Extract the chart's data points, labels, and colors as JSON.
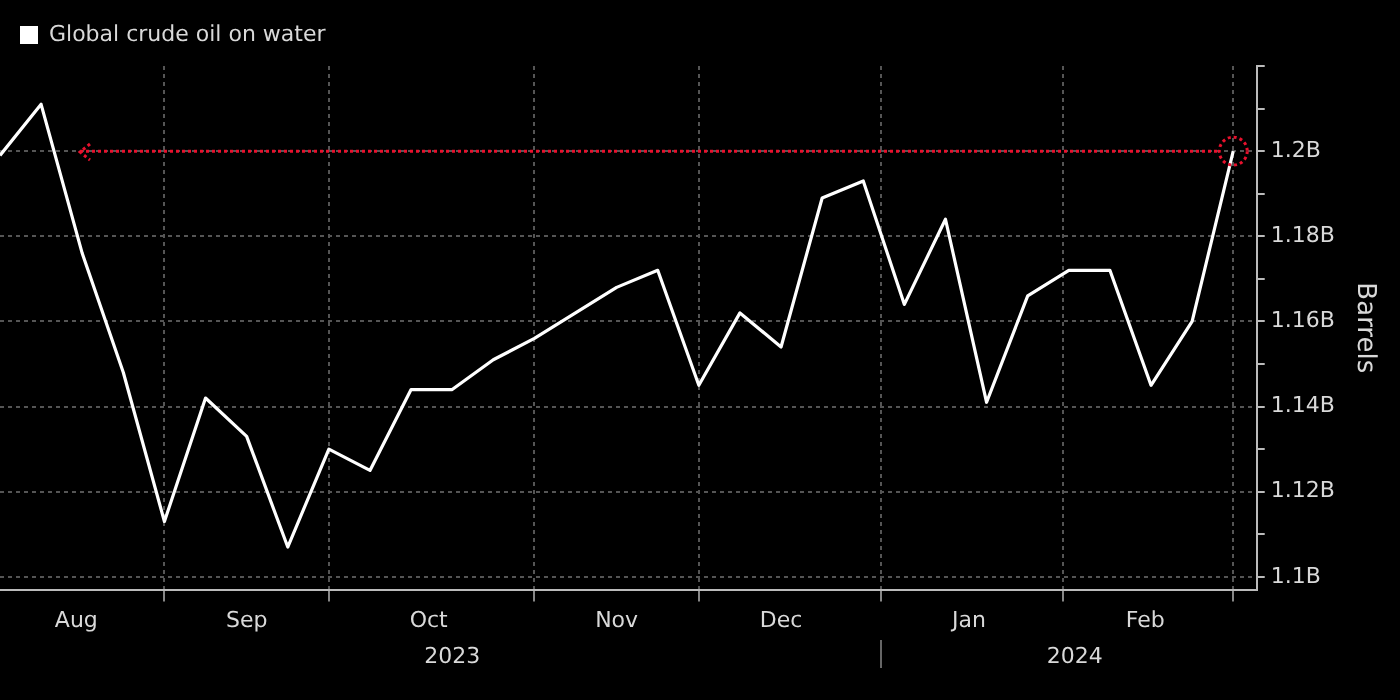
{
  "chart_data": {
    "type": "line",
    "ylabel": "Barrels",
    "legend": "top left",
    "grid": true,
    "marker": "none",
    "line_style": "solid",
    "x": [
      "2023-08-04",
      "2023-08-11",
      "2023-08-18",
      "2023-08-25",
      "2023-09-01",
      "2023-09-08",
      "2023-09-15",
      "2023-09-22",
      "2023-09-29",
      "2023-10-06",
      "2023-10-13",
      "2023-10-20",
      "2023-10-27",
      "2023-11-03",
      "2023-11-10",
      "2023-11-17",
      "2023-11-24",
      "2023-12-01",
      "2023-12-08",
      "2023-12-15",
      "2023-12-22",
      "2023-12-29",
      "2024-01-05",
      "2024-01-12",
      "2024-01-19",
      "2024-01-26",
      "2024-02-02",
      "2024-02-09",
      "2024-02-16",
      "2024-02-23",
      "2024-03-01"
    ],
    "series": [
      {
        "name": "Global crude oil on water",
        "color": "#ffffff",
        "values": [
          1.199,
          1.211,
          1.176,
          1.148,
          1.113,
          1.142,
          1.133,
          1.107,
          1.13,
          1.125,
          1.144,
          1.144,
          1.151,
          1.156,
          1.162,
          1.168,
          1.172,
          1.145,
          1.162,
          1.154,
          1.189,
          1.193,
          1.164,
          1.184,
          1.141,
          1.166,
          1.172,
          1.172,
          1.145,
          1.16,
          1.2
        ]
      }
    ],
    "xlim": [
      "2023-08-04",
      "2024-03-05"
    ],
    "xticks": [
      {
        "value": "2023-08-17",
        "label": "Aug"
      },
      {
        "value": "2023-09-01",
        "label": null
      },
      {
        "value": "2023-09-15",
        "label": "Sep"
      },
      {
        "value": "2023-09-29",
        "label": null
      },
      {
        "value": "2023-10-16",
        "label": "Oct"
      },
      {
        "value": "2023-11-03",
        "label": null
      },
      {
        "value": "2023-11-17",
        "label": "Nov"
      },
      {
        "value": "2023-12-01",
        "label": null
      },
      {
        "value": "2023-12-15",
        "label": "Dec"
      },
      {
        "value": "2024-01-01",
        "label": null
      },
      {
        "value": "2024-01-16",
        "label": "Jan"
      },
      {
        "value": "2024-02-01",
        "label": null
      },
      {
        "value": "2024-02-15",
        "label": "Feb"
      },
      {
        "value": "2024-03-01",
        "label": null
      }
    ],
    "x2lim": [
      "2023-08-04",
      "2024-03-05"
    ],
    "x2ticks": [
      {
        "value": "2023-10-20",
        "label": "2023"
      },
      {
        "value": "2024-01-01",
        "label": null
      },
      {
        "value": "2024-02-03",
        "label": "2024"
      }
    ],
    "ylim": [
      1.097,
      1.22
    ],
    "yticks": [
      {
        "value": 1.1,
        "label": "1.1B"
      },
      {
        "value": 1.11,
        "label": null
      },
      {
        "value": 1.12,
        "label": "1.12B"
      },
      {
        "value": 1.13,
        "label": null
      },
      {
        "value": 1.14,
        "label": "1.14B"
      },
      {
        "value": 1.15,
        "label": null
      },
      {
        "value": 1.16,
        "label": "1.16B"
      },
      {
        "value": 1.17,
        "label": null
      },
      {
        "value": 1.18,
        "label": "1.18B"
      },
      {
        "value": 1.19,
        "label": null
      },
      {
        "value": 1.2,
        "label": "1.2B"
      },
      {
        "value": 1.21,
        "label": null
      },
      {
        "value": 1.22,
        "label": null
      }
    ],
    "ref_lines": [
      {
        "axis": "y",
        "value": 1.2,
        "color": "#e8112d",
        "line_style": "dotted"
      }
    ]
  }
}
